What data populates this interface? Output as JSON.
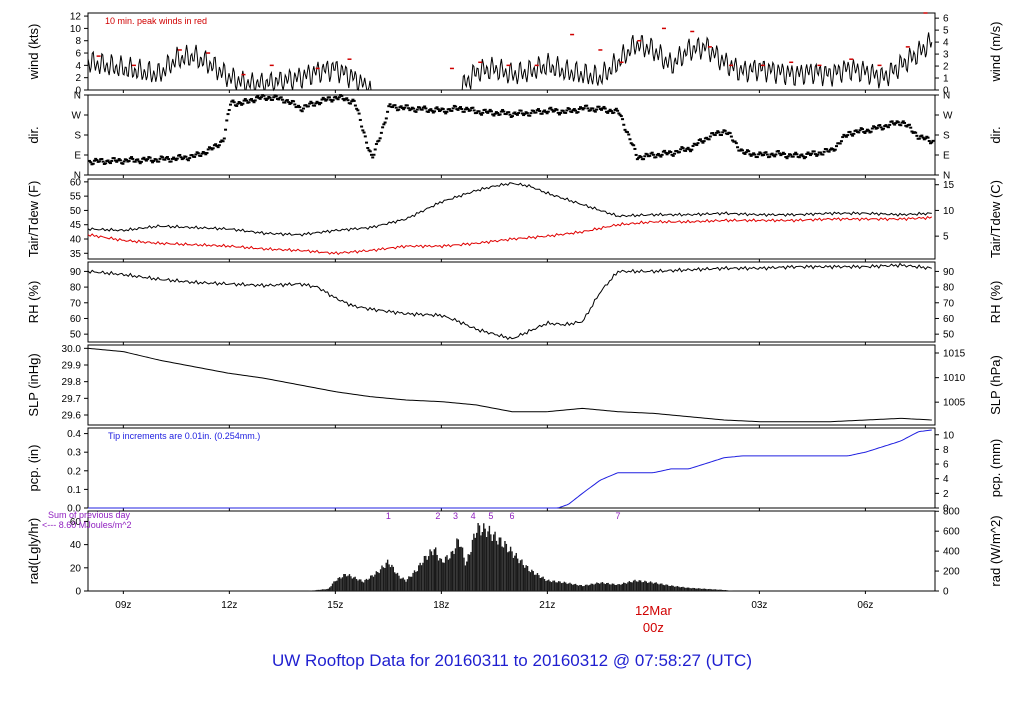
{
  "title": "UW Rooftop Data for 20160311  to  20160312 @ 07:58:27  (UTC)",
  "colors": {
    "title": "#1f1fd0",
    "peak": "#d00000",
    "tdew": "#e00000",
    "pcp": "#2020e0",
    "rad_note": "#9020c0",
    "date_marker": "#d00000"
  },
  "x_axis": {
    "ticks": [
      "09z",
      "12z",
      "15z",
      "18z",
      "21z",
      "03z",
      "06z"
    ],
    "tick_hours": [
      9,
      12,
      15,
      18,
      21,
      27,
      30
    ],
    "date_label": "12Mar",
    "date_sub": "00z",
    "date_hour": 24,
    "range_hours": [
      8.0,
      31.97
    ]
  },
  "chart_data": [
    {
      "type": "line",
      "id": "wind",
      "ylabel_left": "wind (kts)",
      "ylabel_right": "wind (m/s)",
      "ylim": [
        0,
        12.5
      ],
      "yticks": [
        0,
        2,
        4,
        6,
        8,
        10,
        12
      ],
      "right_ticks": [
        "0",
        "1",
        "2",
        "3",
        "4",
        "5",
        "6"
      ],
      "right_ticks_at": [
        0,
        1.944,
        3.888,
        5.832,
        7.776,
        9.72,
        11.664
      ],
      "annotation": "10 min. peak winds in red",
      "series": [
        {
          "x_hours": [
            8,
            9,
            10,
            10.5,
            11,
            11.5,
            12,
            12.5,
            13,
            13.5,
            14,
            14.5,
            15,
            15.5,
            16,
            16.5,
            17,
            17.5,
            18,
            18.5,
            19,
            19.5,
            20,
            20.5,
            21,
            21.5,
            22,
            22.5,
            23,
            23.5,
            24,
            24.5,
            25,
            25.5,
            26,
            26.5,
            27,
            27.5,
            28,
            28.5,
            29,
            29.5,
            30,
            30.5,
            31,
            31.5,
            31.9
          ],
          "values": [
            4.5,
            3.5,
            2.5,
            5,
            5.5,
            4,
            2,
            1,
            1,
            1.5,
            2,
            3,
            3.5,
            2,
            0,
            0,
            0,
            0,
            0,
            0,
            3,
            3.5,
            2.5,
            3,
            4,
            3,
            2.5,
            2,
            4.5,
            7.5,
            6.5,
            4,
            6.5,
            7,
            4.5,
            3,
            3.5,
            3,
            2.5,
            3,
            2.5,
            3.5,
            3,
            2,
            4,
            6,
            8
          ]
        }
      ],
      "peaks": {
        "x_hours": [
          8.3,
          9.3,
          10.6,
          11.4,
          12.4,
          13.2,
          14.5,
          15.4,
          18.3,
          19.1,
          19.9,
          20.7,
          21.7,
          22.5,
          23.1,
          23.6,
          24.3,
          25.1,
          25.6,
          26.2,
          27.1,
          27.9,
          28.7,
          29.6,
          30.4,
          31.2,
          31.7
        ],
        "values": [
          5.5,
          4,
          6.5,
          6,
          2.5,
          4,
          3.5,
          5,
          3.5,
          4.5,
          4,
          4,
          9,
          6.5,
          4.5,
          8,
          10,
          9.5,
          7,
          4,
          4,
          4.5,
          4,
          5,
          4,
          7,
          12.5
        ]
      }
    },
    {
      "type": "scatter",
      "id": "dir",
      "ylabel_left": "dir.",
      "ylabel_right": "dir.",
      "ylim": [
        0,
        360
      ],
      "yticks": [
        0,
        90,
        180,
        270,
        360
      ],
      "tick_labels": [
        "N",
        "E",
        "S",
        "W",
        "N"
      ],
      "series": [
        {
          "x_hours": [
            8,
            9,
            10,
            10.5,
            11,
            11.5,
            11.8,
            12,
            12.3,
            12.6,
            13,
            13.5,
            14,
            14.5,
            15,
            15.5,
            16,
            16.5,
            17,
            17.5,
            18,
            18.5,
            19,
            19.5,
            20,
            20.5,
            21,
            21.5,
            22,
            22.6,
            23,
            23.5,
            24,
            24.5,
            25,
            25.5,
            26,
            26.5,
            27,
            27.5,
            28,
            28.5,
            29,
            29.5,
            30,
            30.5,
            31,
            31.5,
            31.9
          ],
          "values": [
            60,
            65,
            70,
            75,
            85,
            120,
            160,
            330,
            320,
            340,
            350,
            340,
            300,
            330,
            350,
            330,
            70,
            310,
            300,
            295,
            290,
            300,
            285,
            280,
            275,
            280,
            290,
            285,
            300,
            295,
            280,
            80,
            90,
            100,
            120,
            170,
            200,
            100,
            90,
            95,
            85,
            95,
            110,
            190,
            200,
            220,
            240,
            170,
            150
          ]
        }
      ]
    },
    {
      "type": "line",
      "id": "temp",
      "ylabel_left": "Tair/Tdew (F)",
      "ylabel_right": "Tair/Tdew (C)",
      "ylim": [
        33,
        61
      ],
      "yticks": [
        35,
        40,
        45,
        50,
        55,
        60
      ],
      "right_ticks": [
        "5",
        "10",
        "15"
      ],
      "right_ticks_at": [
        41,
        50,
        59
      ],
      "series": [
        {
          "name": "Tair",
          "x_hours": [
            8,
            9,
            10,
            11,
            12,
            13,
            14,
            15,
            16,
            17,
            18,
            18.5,
            19,
            19.5,
            20,
            20.5,
            21,
            21.5,
            22,
            23,
            24,
            25,
            26,
            27,
            28,
            29,
            30,
            31,
            31.9
          ],
          "values": [
            43.5,
            43,
            44.5,
            44,
            43.5,
            42,
            41.5,
            43,
            44,
            47,
            53,
            55,
            57,
            58.5,
            59.5,
            58.5,
            56,
            54,
            52,
            48,
            48.5,
            48.5,
            49,
            48.5,
            48.5,
            49,
            49,
            48.5,
            49
          ]
        },
        {
          "name": "Tdew",
          "x_hours": [
            8,
            9,
            10,
            11,
            12,
            13,
            14,
            15,
            16,
            17,
            18,
            19,
            20,
            21,
            22,
            23,
            24,
            25,
            26,
            27,
            28,
            29,
            30,
            31,
            31.9
          ],
          "values": [
            41.5,
            39.5,
            38.5,
            38,
            37.5,
            36.5,
            36,
            35,
            36,
            37.5,
            37.5,
            38.5,
            40,
            41,
            42.5,
            45,
            46,
            46,
            46.5,
            46.5,
            46.5,
            47,
            47,
            47,
            47.5
          ]
        }
      ]
    },
    {
      "type": "line",
      "id": "rh",
      "ylabel_left": "RH (%)",
      "ylabel_right": "RH (%)",
      "ylim": [
        45,
        96
      ],
      "yticks": [
        50,
        60,
        70,
        80,
        90
      ],
      "right_ticks": [
        "50",
        "60",
        "70",
        "80",
        "90"
      ],
      "right_ticks_at": [
        50,
        60,
        70,
        80,
        90
      ],
      "series": [
        {
          "x_hours": [
            8,
            9,
            10,
            11,
            12,
            13,
            14,
            14.5,
            15,
            15.5,
            16,
            17,
            18,
            18.5,
            19,
            19.5,
            20,
            20.5,
            21,
            21.5,
            22,
            22.5,
            23,
            24,
            25,
            26,
            27,
            28,
            29,
            30,
            31,
            31.9
          ],
          "values": [
            90,
            88,
            85,
            83,
            82,
            81,
            82,
            80,
            73,
            68,
            66,
            63,
            62,
            58,
            53,
            50,
            47,
            52,
            57,
            56,
            58,
            77,
            90,
            90,
            91,
            92,
            92,
            93,
            93,
            93,
            94,
            92
          ]
        }
      ]
    },
    {
      "type": "line",
      "id": "slp",
      "ylabel_left": "SLP (inHg)",
      "ylabel_right": "SLP (hPa)",
      "ylim": [
        29.54,
        30.02
      ],
      "yticks": [
        29.6,
        29.7,
        29.8,
        29.9,
        30.0
      ],
      "tick_labels": [
        "29.6",
        "29.7",
        "29.8",
        "29.9",
        "30.0"
      ],
      "right_ticks": [
        "1005",
        "1010",
        "1015"
      ],
      "right_ticks_at": [
        29.677,
        29.824,
        29.972
      ],
      "series": [
        {
          "x_hours": [
            8,
            9,
            10,
            11,
            12,
            13,
            14,
            15,
            16,
            17,
            18,
            19,
            20,
            21,
            22,
            23,
            24,
            25,
            26,
            27,
            28,
            29,
            30,
            31,
            31.9
          ],
          "values": [
            30.0,
            29.98,
            29.93,
            29.89,
            29.85,
            29.82,
            29.78,
            29.74,
            29.71,
            29.69,
            29.68,
            29.66,
            29.62,
            29.62,
            29.64,
            29.62,
            29.61,
            29.59,
            29.57,
            29.56,
            29.56,
            29.56,
            29.57,
            29.58,
            29.57
          ]
        }
      ]
    },
    {
      "type": "line",
      "id": "pcp",
      "ylabel_left": "pcp. (in)",
      "ylabel_right": "pcp. (mm)",
      "ylim": [
        0,
        0.43
      ],
      "yticks": [
        0,
        0.1,
        0.2,
        0.3,
        0.4
      ],
      "tick_labels": [
        "0.0",
        "0.1",
        "0.2",
        "0.3",
        "0.4"
      ],
      "right_ticks": [
        "0",
        "2",
        "4",
        "6",
        "8",
        "10"
      ],
      "right_ticks_at": [
        0,
        0.0787,
        0.1575,
        0.2362,
        0.315,
        0.3937
      ],
      "annotation": "Tip increments are 0.01in. (0.254mm.)",
      "series": [
        {
          "x_hours": [
            8,
            21.3,
            21.6,
            22,
            22.5,
            23,
            23.5,
            24,
            24.5,
            25,
            25.5,
            26,
            26.5,
            27,
            27.5,
            28,
            28.5,
            29,
            29.5,
            30,
            30.5,
            31,
            31.5,
            31.9
          ],
          "values": [
            0,
            0,
            0.02,
            0.08,
            0.15,
            0.19,
            0.19,
            0.19,
            0.21,
            0.21,
            0.24,
            0.27,
            0.28,
            0.28,
            0.28,
            0.28,
            0.28,
            0.28,
            0.28,
            0.3,
            0.33,
            0.36,
            0.41,
            0.42
          ]
        }
      ]
    },
    {
      "type": "area",
      "id": "rad",
      "ylabel_left": "rad(Lgly/hr)",
      "ylabel_right": "rad (W/m^2)",
      "ylim": [
        0,
        69
      ],
      "yticks": [
        0,
        20,
        40,
        60
      ],
      "right_ticks": [
        "0",
        "200",
        "400",
        "600",
        "800"
      ],
      "right_ticks_at": [
        0,
        17.2,
        34.4,
        51.6,
        68.8
      ],
      "annotation_lines": [
        "Sum of previous day",
        "<--- 8.60 MJoules/m^2"
      ],
      "hour_markers": {
        "labels": [
          "1",
          "2",
          "3",
          "4",
          "5",
          "6",
          "7"
        ],
        "x_hours": [
          16.5,
          17.9,
          18.4,
          18.9,
          19.4,
          20.0,
          23.0
        ]
      },
      "series": [
        {
          "x_hours": [
            14.2,
            14.8,
            15,
            15.3,
            15.8,
            16.2,
            16.5,
            16.8,
            17,
            17.3,
            17.5,
            17.8,
            18,
            18.3,
            18.5,
            18.7,
            19,
            19.3,
            19.5,
            19.8,
            20.2,
            20.5,
            21,
            21.5,
            22,
            22.5,
            23,
            23.5,
            24,
            24.5,
            25,
            25.5,
            26,
            26.3
          ],
          "values": [
            0,
            2,
            10,
            16,
            9,
            18,
            28,
            14,
            10,
            20,
            30,
            40,
            28,
            35,
            50,
            25,
            60,
            58,
            52,
            44,
            30,
            20,
            10,
            8,
            5,
            8,
            6,
            10,
            8,
            5,
            3,
            2,
            1,
            0
          ]
        }
      ]
    }
  ]
}
